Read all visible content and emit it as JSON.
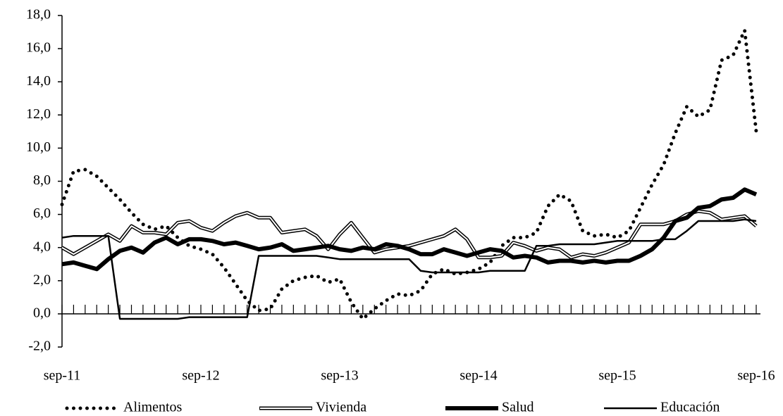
{
  "chart_data": {
    "type": "line",
    "categories": [
      "sep-11",
      null,
      null,
      null,
      null,
      null,
      null,
      null,
      null,
      null,
      null,
      null,
      "sep-12",
      null,
      null,
      null,
      null,
      null,
      null,
      null,
      null,
      null,
      null,
      null,
      "sep-13",
      null,
      null,
      null,
      null,
      null,
      null,
      null,
      null,
      null,
      null,
      null,
      "sep-14",
      null,
      null,
      null,
      null,
      null,
      null,
      null,
      null,
      null,
      null,
      null,
      "sep-15",
      null,
      null,
      null,
      null,
      null,
      null,
      null,
      null,
      null,
      null,
      null,
      "sep-16"
    ],
    "ylim": [
      -2,
      18
    ],
    "yticks": [
      {
        "value": -2,
        "label": "-2,0"
      },
      {
        "value": 0,
        "label": "0,0"
      },
      {
        "value": 2,
        "label": "2,0"
      },
      {
        "value": 4,
        "label": "4,0"
      },
      {
        "value": 6,
        "label": "6,0"
      },
      {
        "value": 8,
        "label": "8,0"
      },
      {
        "value": 10,
        "label": "10,0"
      },
      {
        "value": 12,
        "label": "12,0"
      },
      {
        "value": 14,
        "label": "14,0"
      },
      {
        "value": 16,
        "label": "16,0"
      },
      {
        "value": 18,
        "label": "18,0"
      }
    ],
    "legend": "bottom",
    "series": [
      {
        "name": "Alimentos",
        "style": "dotted",
        "color": "#000000",
        "values": [
          6.6,
          8.6,
          8.7,
          8.3,
          7.6,
          6.9,
          6.1,
          5.4,
          5.1,
          5.3,
          4.6,
          4.1,
          3.9,
          3.6,
          2.8,
          1.8,
          0.8,
          0.2,
          0.3,
          1.5,
          2.0,
          2.2,
          2.3,
          1.9,
          2.1,
          0.7,
          -0.3,
          0.3,
          0.8,
          1.2,
          1.1,
          1.4,
          2.4,
          2.7,
          2.4,
          2.5,
          2.7,
          3.1,
          4.1,
          4.6,
          4.6,
          4.9,
          6.5,
          7.2,
          6.8,
          5.0,
          4.7,
          4.8,
          4.6,
          5.0,
          6.4,
          7.8,
          9.0,
          10.9,
          12.5,
          11.9,
          12.3,
          15.3,
          15.6,
          17.1,
          11.0
        ]
      },
      {
        "name": "Vivienda",
        "style": "double",
        "color": "#000000",
        "values": [
          4.0,
          3.6,
          4.0,
          4.4,
          4.8,
          4.4,
          5.3,
          4.9,
          4.9,
          4.8,
          5.5,
          5.6,
          5.2,
          5.0,
          5.5,
          5.9,
          6.1,
          5.8,
          5.8,
          4.9,
          5.0,
          5.1,
          4.7,
          3.9,
          4.8,
          5.5,
          4.6,
          3.7,
          3.9,
          4.0,
          4.1,
          4.3,
          4.5,
          4.7,
          5.1,
          4.5,
          3.4,
          3.4,
          3.5,
          4.3,
          4.1,
          3.8,
          4.0,
          3.9,
          3.4,
          3.6,
          3.5,
          3.7,
          4.0,
          4.3,
          5.4,
          5.4,
          5.4,
          5.6,
          6.0,
          6.2,
          6.1,
          5.7,
          5.8,
          5.9,
          5.3
        ]
      },
      {
        "name": "Salud",
        "style": "thick",
        "color": "#000000",
        "values": [
          3.0,
          3.1,
          2.9,
          2.7,
          3.3,
          3.8,
          4.0,
          3.7,
          4.3,
          4.6,
          4.2,
          4.5,
          4.5,
          4.4,
          4.2,
          4.3,
          4.1,
          3.9,
          4.0,
          4.2,
          3.8,
          3.9,
          4.0,
          4.1,
          3.9,
          3.8,
          4.0,
          3.9,
          4.2,
          4.1,
          3.9,
          3.6,
          3.6,
          3.9,
          3.7,
          3.5,
          3.7,
          3.9,
          3.8,
          3.4,
          3.5,
          3.4,
          3.1,
          3.2,
          3.2,
          3.1,
          3.2,
          3.1,
          3.2,
          3.2,
          3.5,
          3.9,
          4.6,
          5.6,
          5.8,
          6.4,
          6.5,
          6.9,
          7.0,
          7.5,
          7.2
        ]
      },
      {
        "name": "Educación",
        "style": "solid",
        "color": "#000000",
        "values": [
          4.6,
          4.7,
          4.7,
          4.7,
          4.7,
          -0.3,
          -0.3,
          -0.3,
          -0.3,
          -0.3,
          -0.3,
          -0.2,
          -0.2,
          -0.2,
          -0.2,
          -0.2,
          -0.2,
          3.5,
          3.5,
          3.5,
          3.5,
          3.5,
          3.5,
          3.4,
          3.3,
          3.3,
          3.3,
          3.3,
          3.3,
          3.3,
          3.3,
          2.6,
          2.5,
          2.5,
          2.5,
          2.5,
          2.5,
          2.6,
          2.6,
          2.6,
          2.6,
          4.1,
          4.1,
          4.2,
          4.2,
          4.2,
          4.2,
          4.3,
          4.4,
          4.4,
          4.4,
          4.4,
          4.5,
          4.5,
          5.0,
          5.6,
          5.6,
          5.6,
          5.6,
          5.7,
          5.6
        ]
      }
    ]
  }
}
